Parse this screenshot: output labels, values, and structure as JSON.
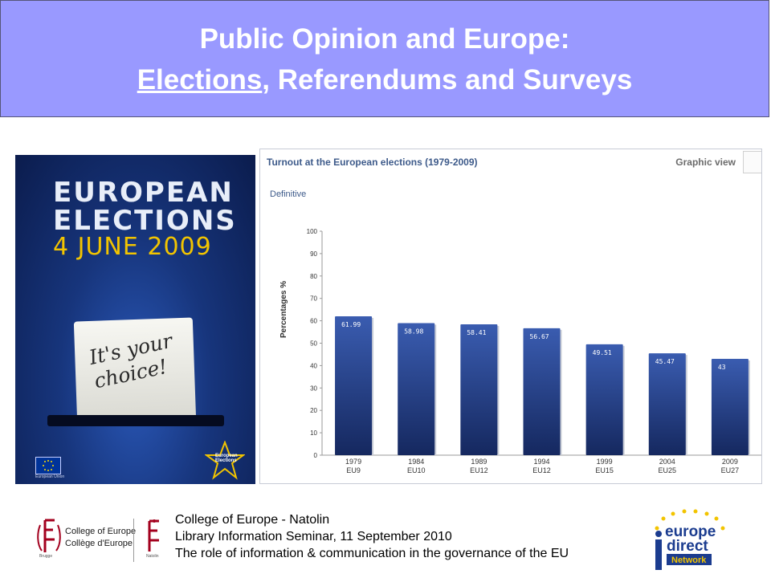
{
  "slide": {
    "title_line1": "Public Opinion and Europe:",
    "title_line2_underlined": "Elections",
    "title_line2_rest": ", Referendums and Surveys"
  },
  "poster": {
    "line1": "EUROPEAN",
    "line2": "ELECTIONS",
    "line3": "4 JUNE 2009",
    "card_line1": "It's your",
    "card_line2": "choice!",
    "eu_label": "European Union",
    "star_label": "European Elections"
  },
  "chart_panel": {
    "title": "Turnout at the European elections (1979-2009)",
    "view_tab": "Graphic view",
    "subtitle": "Definitive"
  },
  "chart_data": {
    "type": "bar",
    "categories": [
      "1979\nEU9",
      "1984\nEU10",
      "1989\nEU12",
      "1994\nEU12",
      "1999\nEU15",
      "2004\nEU25",
      "2009\nEU27"
    ],
    "years": [
      "1979",
      "1984",
      "1989",
      "1994",
      "1999",
      "2004",
      "2009"
    ],
    "groups": [
      "EU9",
      "EU10",
      "EU12",
      "EU12",
      "EU15",
      "EU25",
      "EU27"
    ],
    "values": [
      61.99,
      58.98,
      58.41,
      56.67,
      49.51,
      45.47,
      43
    ],
    "data_labels": [
      "61.99",
      "58.98",
      "58.41",
      "56.67",
      "49.51",
      "45.47",
      "43"
    ],
    "ylabel": "Percentages %",
    "ylim": [
      0,
      100
    ],
    "yticks": [
      0,
      10,
      20,
      30,
      40,
      50,
      60,
      70,
      80,
      90,
      100
    ],
    "grid": false,
    "colors": {
      "bar_top": "#3a5cb0",
      "bar_bottom": "#15285f",
      "label": "#ffffff"
    }
  },
  "footer": {
    "cofe_line1": "College of Europe",
    "cofe_line2": "Collège d'Europe",
    "brugge": "Brugge",
    "natolin": "Natolin",
    "line1": "College of Europe - Natolin",
    "line2": "Library Information Seminar, 11 September 2010",
    "line3": "The role of information & communication in the governance of the EU",
    "ed_line1": "europe",
    "ed_line2": "direct",
    "ed_line3": "Network"
  }
}
